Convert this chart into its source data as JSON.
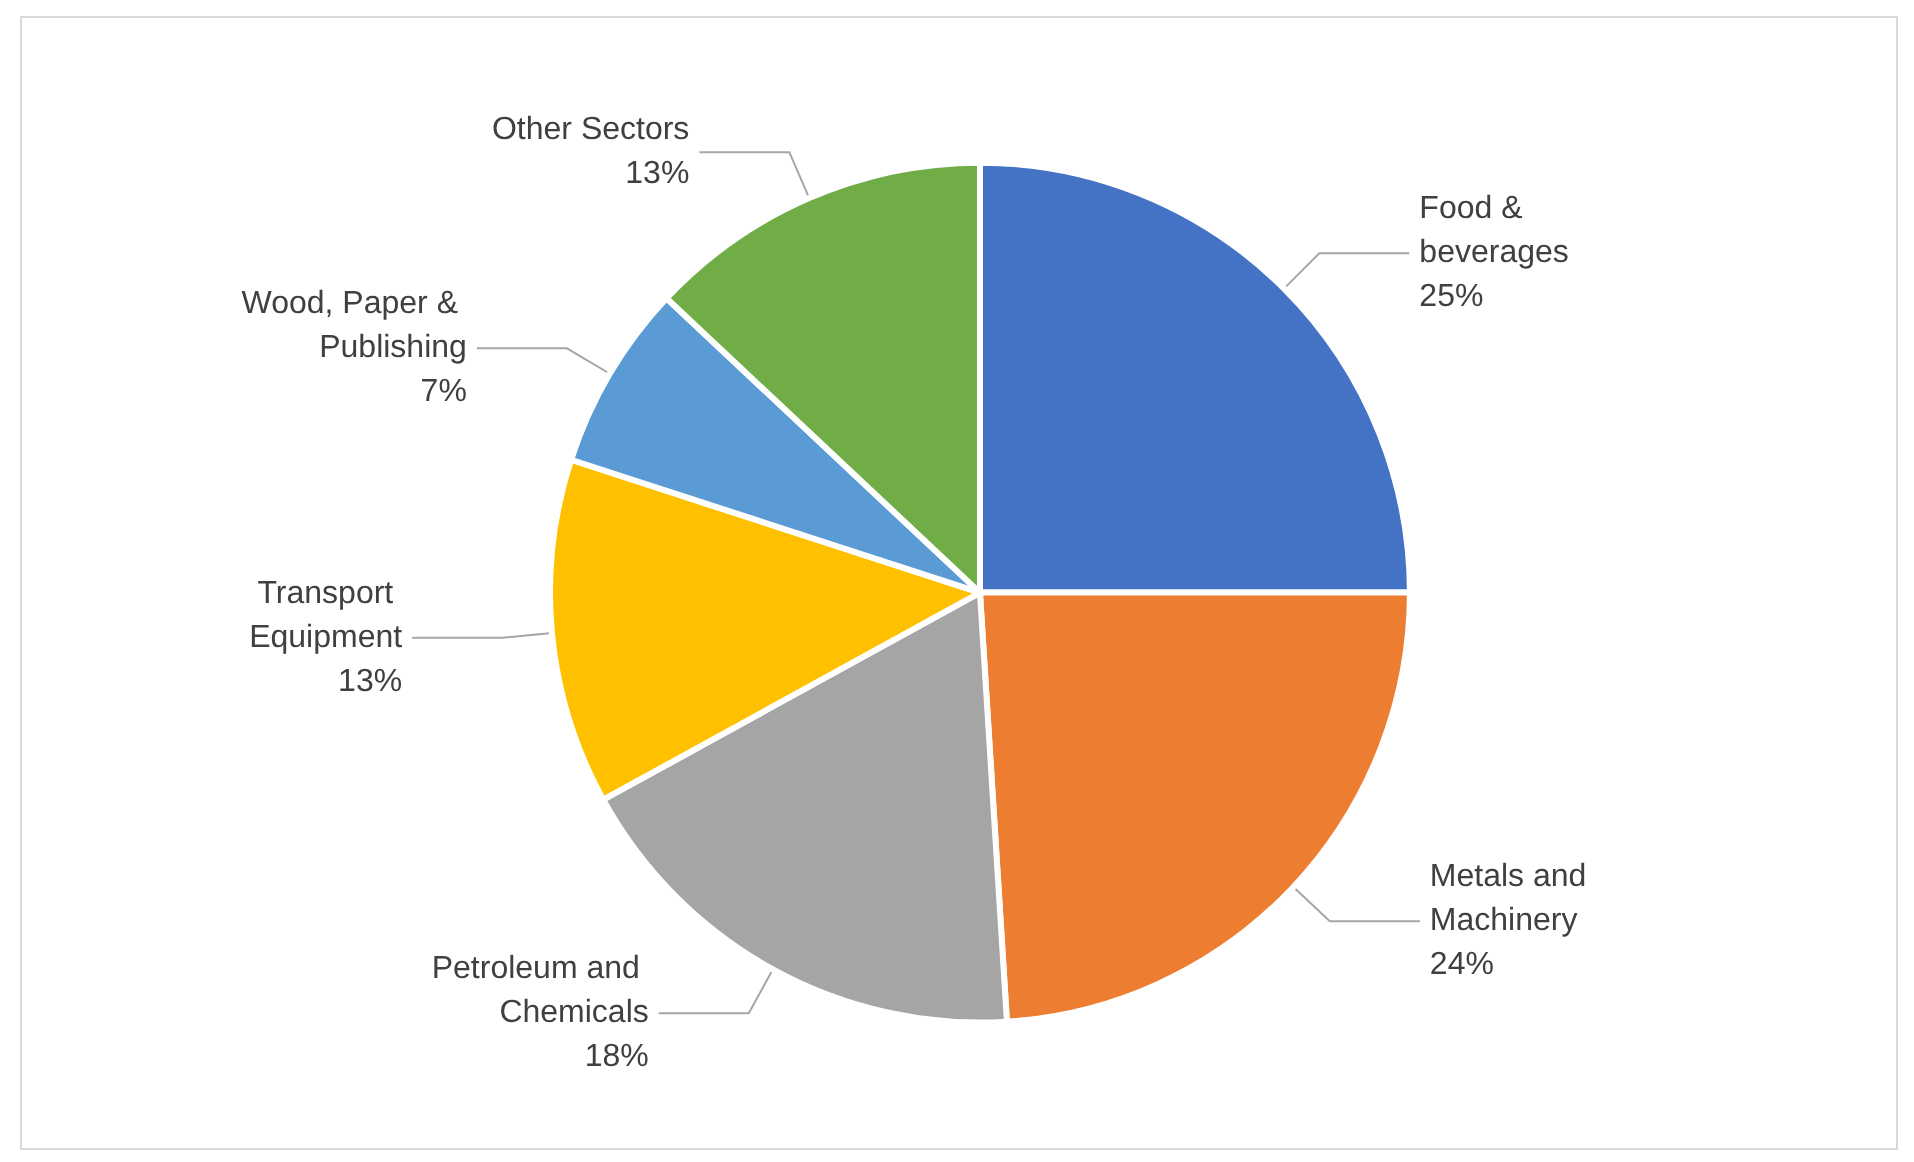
{
  "chart_data": {
    "type": "pie",
    "categories": [
      "Food & beverages",
      "Metals and Machinery",
      "Petroleum and Chemicals",
      "Transport Equipment",
      "Wood, Paper & Publishing",
      "Other Sectors"
    ],
    "values": [
      25,
      24,
      18,
      13,
      7,
      13
    ],
    "value_labels": [
      "25%",
      "24%",
      "18%",
      "13%",
      "7%",
      "13%"
    ],
    "colors": [
      "#4472c4",
      "#ed7d31",
      "#a5a5a5",
      "#ffc000",
      "#5b9bd5",
      "#70ad47"
    ],
    "legend": false
  }
}
